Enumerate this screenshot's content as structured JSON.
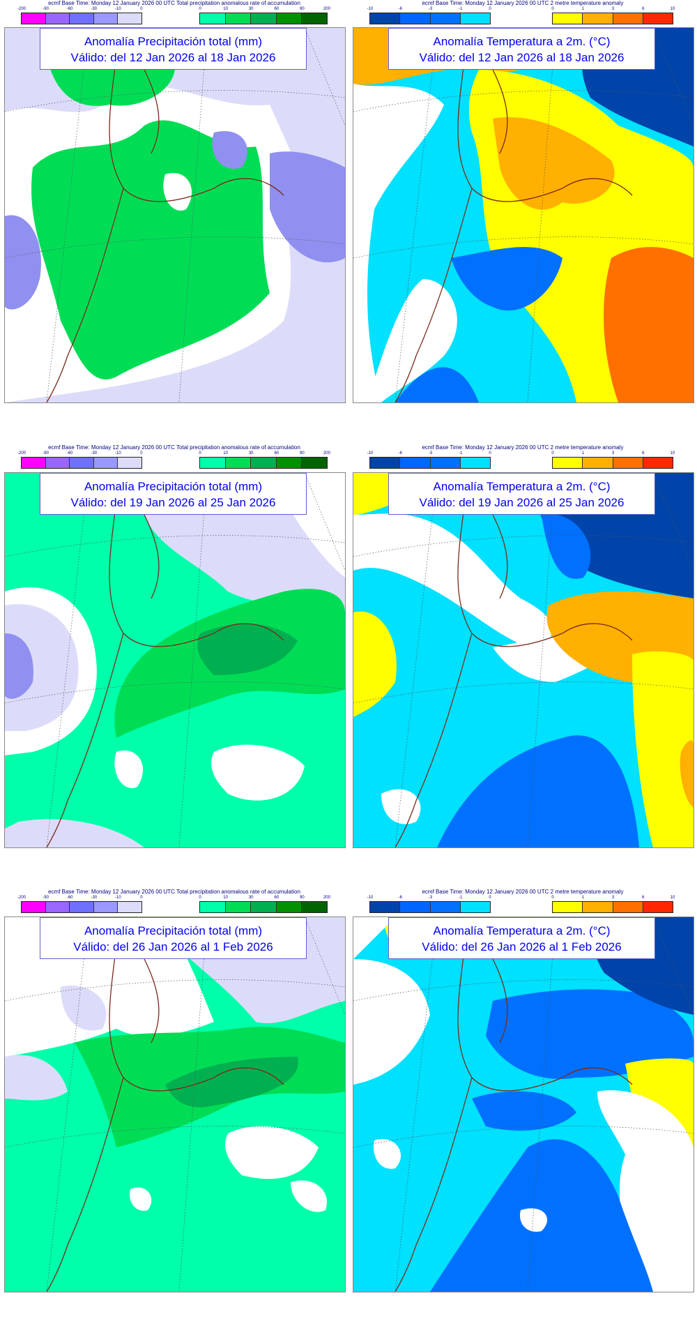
{
  "precip_legend": {
    "header": "ecmf  Base Time: Monday 12 January 2026 00 UTC Total precipitation anomalous rate of accumulation",
    "negative": {
      "ticks": [
        "-200",
        "-90",
        "-60",
        "-30",
        "-10",
        "0"
      ],
      "colors": [
        "#ff00ff",
        "#9966ff",
        "#7070ff",
        "#9999ff",
        "#dcdcfa"
      ]
    },
    "positive": {
      "ticks": [
        "0",
        "10",
        "30",
        "60",
        "90",
        "200"
      ],
      "colors": [
        "#00ffaa",
        "#00dd55",
        "#00b050",
        "#009000",
        "#006400"
      ]
    }
  },
  "temp_legend": {
    "header": "ecmf  Base Time: Monday 12 January 2026 00 UTC 2 metre temperature anomaly",
    "negative": {
      "ticks": [
        "-10",
        "-6",
        "-3",
        "-1",
        "0"
      ],
      "colors": [
        "#0044aa",
        "#0066ff",
        "#0070ff",
        "#00e0ff"
      ]
    },
    "positive": {
      "ticks": [
        "0",
        "1",
        "3",
        "6",
        "10"
      ],
      "colors": [
        "#ffff00",
        "#ffb000",
        "#ff7000",
        "#ff2800"
      ]
    }
  },
  "panels": [
    {
      "title": "Anomalía Precipitación total (mm)",
      "valid": "Válido: del 12 Jan 2026 al 18 Jan 2026"
    },
    {
      "title": "Anomalía Temperatura a 2m. (°C)",
      "valid": "Válido: del 12 Jan 2026 al 18 Jan 2026"
    },
    {
      "title": "Anomalía Precipitación total (mm)",
      "valid": "Válido: del 19 Jan 2026 al 25 Jan 2026"
    },
    {
      "title": "Anomalía Temperatura a 2m. (°C)",
      "valid": "Válido: del 19 Jan 2026 al 25 Jan 2026"
    },
    {
      "title": "Anomalía Precipitación total (mm)",
      "valid": "Válido: del 26 Jan 2026 al 1 Feb 2026"
    },
    {
      "title": "Anomalía Temperatura a 2m. (°C)",
      "valid": "Válido: del 26 Jan 2026 al 1 Feb 2026"
    }
  ]
}
